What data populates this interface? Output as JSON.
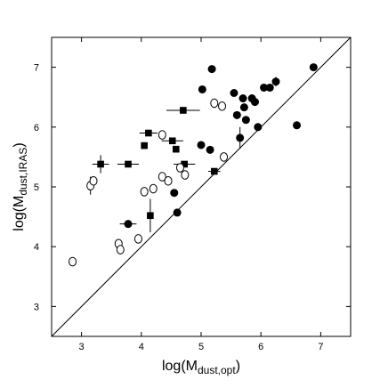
{
  "chart_data": {
    "type": "scatter",
    "title": "",
    "xlabel": {
      "main": "log(M",
      "sub": "dust,opt",
      "close": ")"
    },
    "ylabel": {
      "main": "log(M",
      "sub": "dust,IRAS",
      "close": ")"
    },
    "xlim": [
      2.5,
      7.5
    ],
    "ylim": [
      2.5,
      7.5
    ],
    "xticks": [
      3,
      4,
      5,
      6,
      7
    ],
    "yticks": [
      3,
      4,
      5,
      6,
      7
    ],
    "grid": false,
    "reference_line": {
      "type": "one-to-one",
      "from": [
        2.5,
        2.5
      ],
      "to": [
        7.5,
        7.5
      ]
    },
    "series": [
      {
        "marker": "filled-circle",
        "points": [
          {
            "x": 5.18,
            "y": 6.97
          },
          {
            "x": 6.88,
            "y": 7.0
          },
          {
            "x": 5.02,
            "y": 6.63
          },
          {
            "x": 5.55,
            "y": 6.57
          },
          {
            "x": 5.7,
            "y": 6.48
          },
          {
            "x": 5.85,
            "y": 6.48
          },
          {
            "x": 6.05,
            "y": 6.66
          },
          {
            "x": 6.15,
            "y": 6.66
          },
          {
            "x": 6.25,
            "y": 6.76
          },
          {
            "x": 5.9,
            "y": 6.42
          },
          {
            "x": 5.72,
            "y": 6.33
          },
          {
            "x": 5.6,
            "y": 6.2
          },
          {
            "x": 5.75,
            "y": 6.12
          },
          {
            "x": 5.95,
            "y": 6.0
          },
          {
            "x": 6.6,
            "y": 6.03
          },
          {
            "x": 5.65,
            "y": 5.82
          },
          {
            "x": 5.0,
            "y": 5.7
          },
          {
            "x": 5.15,
            "y": 5.62
          },
          {
            "x": 4.55,
            "y": 4.9
          },
          {
            "x": 3.78,
            "y": 4.38
          },
          {
            "x": 4.6,
            "y": 4.57
          }
        ]
      },
      {
        "marker": "filled-square",
        "points": [
          {
            "x": 4.7,
            "y": 6.28
          },
          {
            "x": 4.12,
            "y": 5.9
          },
          {
            "x": 4.52,
            "y": 5.77
          },
          {
            "x": 4.05,
            "y": 5.69
          },
          {
            "x": 4.58,
            "y": 5.63
          },
          {
            "x": 3.32,
            "y": 5.38
          },
          {
            "x": 3.78,
            "y": 5.38
          },
          {
            "x": 4.72,
            "y": 5.38
          },
          {
            "x": 5.22,
            "y": 5.26
          },
          {
            "x": 4.15,
            "y": 4.52
          }
        ]
      },
      {
        "marker": "open-circle",
        "points": [
          {
            "x": 5.22,
            "y": 6.4
          },
          {
            "x": 5.35,
            "y": 6.35
          },
          {
            "x": 4.35,
            "y": 5.87
          },
          {
            "x": 5.38,
            "y": 5.5
          },
          {
            "x": 4.65,
            "y": 5.32
          },
          {
            "x": 4.35,
            "y": 5.17
          },
          {
            "x": 4.45,
            "y": 5.1
          },
          {
            "x": 4.73,
            "y": 5.2
          },
          {
            "x": 4.2,
            "y": 4.97
          },
          {
            "x": 4.05,
            "y": 4.92
          },
          {
            "x": 3.15,
            "y": 5.02
          },
          {
            "x": 3.2,
            "y": 5.1
          },
          {
            "x": 3.95,
            "y": 4.13
          },
          {
            "x": 3.62,
            "y": 4.05
          },
          {
            "x": 3.65,
            "y": 3.95
          },
          {
            "x": 2.85,
            "y": 3.75
          }
        ]
      }
    ],
    "error_bars": [
      {
        "x": 4.7,
        "y": 6.28,
        "dx": 0.28
      },
      {
        "x": 4.52,
        "y": 5.77,
        "dx": 0.18
      },
      {
        "x": 3.32,
        "y": 5.38,
        "dx": 0.14,
        "dy": 0.15
      },
      {
        "x": 3.78,
        "y": 5.38,
        "dx": 0.18
      },
      {
        "x": 4.72,
        "y": 5.38,
        "dx": 0.18
      },
      {
        "x": 4.12,
        "y": 5.9,
        "dx": 0.15
      },
      {
        "x": 3.78,
        "y": 4.38,
        "dx": 0.14
      },
      {
        "x": 4.15,
        "y": 4.52,
        "dy": 0.28
      },
      {
        "x": 3.15,
        "y": 5.02,
        "dy": 0.15
      },
      {
        "x": 5.65,
        "y": 5.82,
        "dy": 0.18
      },
      {
        "x": 6.25,
        "y": 6.76,
        "dy": 0.08
      },
      {
        "x": 5.22,
        "y": 5.26,
        "dx": 0.1
      }
    ]
  }
}
